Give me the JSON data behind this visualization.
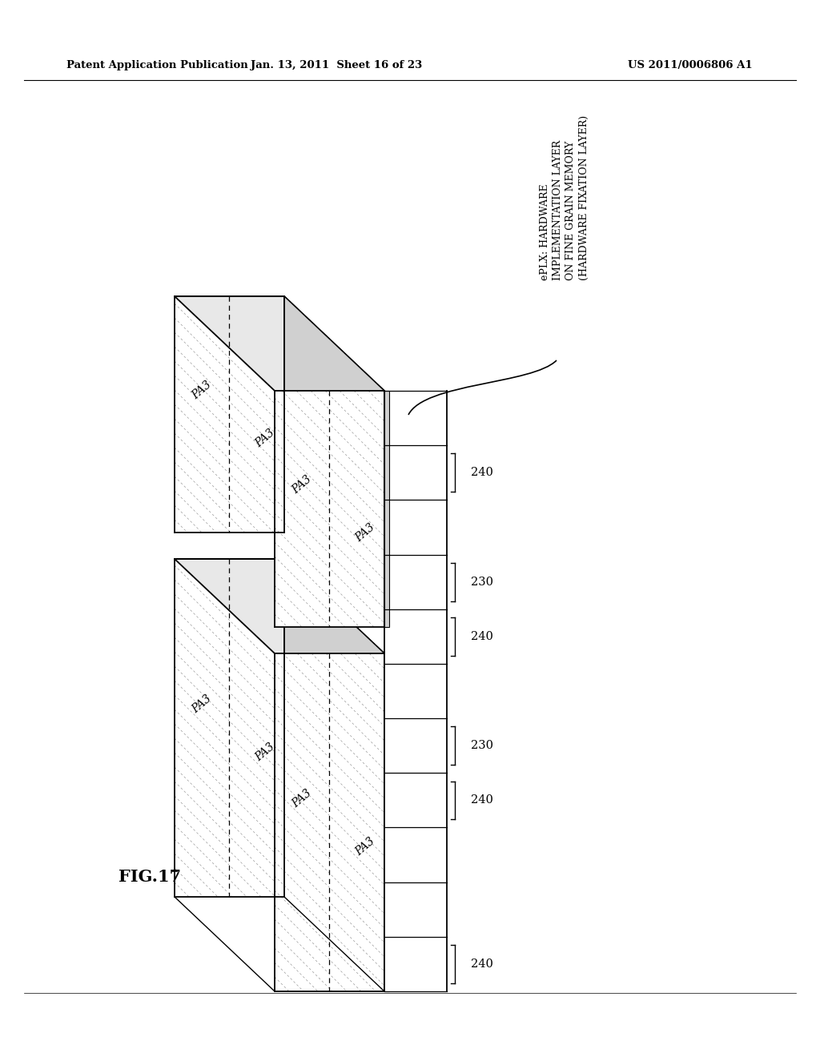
{
  "header_left": "Patent Application Publication",
  "header_center": "Jan. 13, 2011  Sheet 16 of 23",
  "header_right": "US 2011/0006806 A1",
  "fig_label": "FIG.17",
  "annotation_line1": "ePLX: HARDWARE",
  "annotation_line2": "IMPLEMENTATION LAYER",
  "annotation_line3": "ON FINE GRAIN MEMORY",
  "annotation_line4": "(HARDWARE FIXATION LAYER)",
  "bg_color": "#ffffff",
  "line_color": "#000000",
  "hatch_color": "#888888",
  "gray_light": "#e8e8e8",
  "gray_mid": "#d0d0d0",
  "gray_dark": "#b8b8b8"
}
